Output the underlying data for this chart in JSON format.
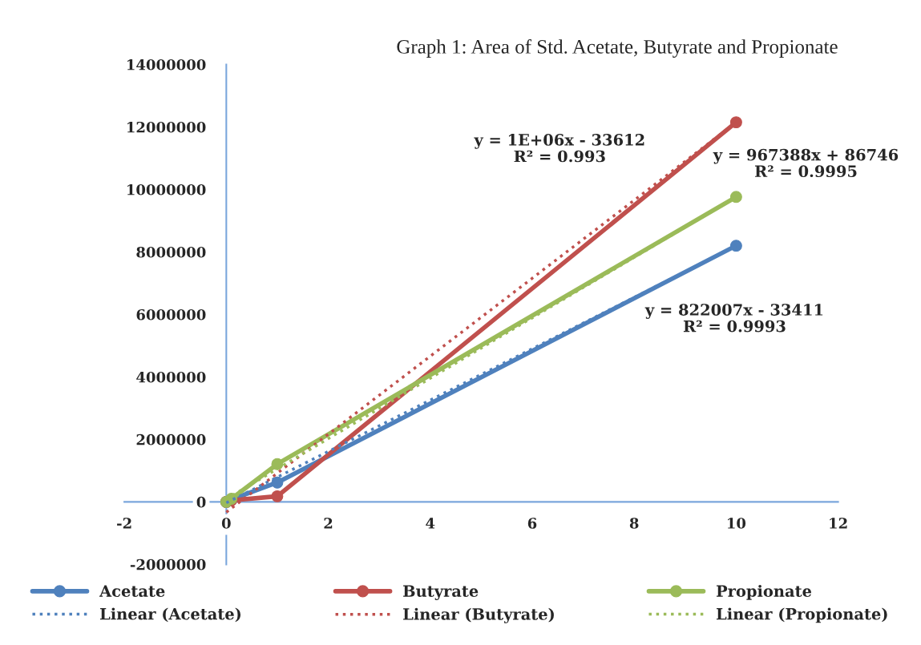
{
  "chart_data": {
    "type": "line",
    "title": "Graph 1: Area of Std. Acetate, Butyrate and Propionate",
    "xlim": [
      -2,
      12
    ],
    "xticks": [
      -2,
      0,
      2,
      4,
      6,
      8,
      10,
      12
    ],
    "ylim": [
      -2000000,
      14000000
    ],
    "yticks": [
      -2000000,
      0,
      2000000,
      4000000,
      6000000,
      8000000,
      10000000,
      12000000,
      14000000
    ],
    "grid": false,
    "legend": "bottom",
    "series": [
      {
        "name": "Acetate",
        "color": "#4f81bd",
        "marker": "circle",
        "line_style": "solid",
        "x": [
          0,
          0.1,
          1,
          10
        ],
        "values": [
          0,
          80000,
          620000,
          8200000
        ]
      },
      {
        "name": "Linear (Acetate)",
        "color": "#4f81bd",
        "marker": "none",
        "line_style": "dotted",
        "x": [
          0,
          10
        ],
        "values": [
          -30000,
          8190000
        ]
      },
      {
        "name": "Butyrate",
        "color": "#c0504d",
        "marker": "circle",
        "line_style": "solid",
        "x": [
          0,
          0.1,
          1,
          10
        ],
        "values": [
          0,
          50000,
          180000,
          12150000
        ]
      },
      {
        "name": "Linear (Butyrate)",
        "color": "#c0504d",
        "marker": "none",
        "line_style": "dotted",
        "x": [
          0,
          10
        ],
        "values": [
          -330000,
          12150000
        ]
      },
      {
        "name": "Propionate",
        "color": "#9bbb59",
        "marker": "circle",
        "line_style": "solid",
        "x": [
          0,
          0.1,
          1,
          10
        ],
        "values": [
          0,
          100000,
          1210000,
          9760000
        ]
      },
      {
        "name": "Linear (Propionate)",
        "color": "#9bbb59",
        "marker": "none",
        "line_style": "dotted",
        "x": [
          0,
          10
        ],
        "values": [
          90000,
          9760000
        ]
      }
    ],
    "annotations": [
      "y = 822007x - 33411\nR² = 0.9993",
      "y = 1E+06x - 33612\nR² = 0.993",
      "y = 967388x + 86746\nR² = 0.9995"
    ]
  }
}
